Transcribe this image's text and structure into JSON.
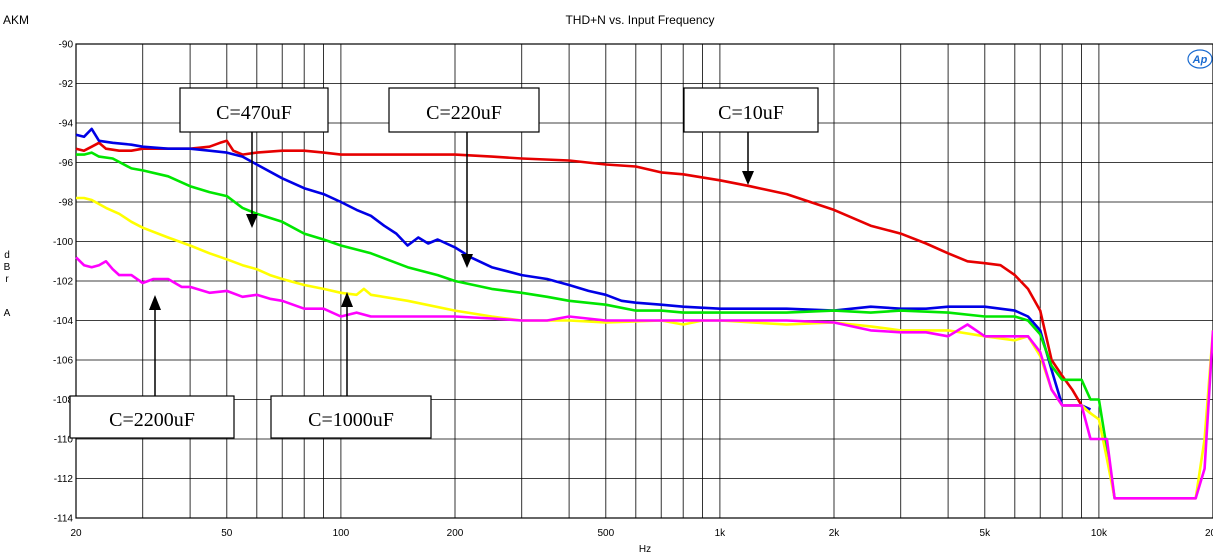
{
  "header": {
    "brand": "AKM",
    "logo_text": "Ap"
  },
  "chart_data": {
    "type": "line",
    "title": "THD+N vs. Input Frequency",
    "xlabel": "Hz",
    "ylabel_lines": [
      "d",
      "B",
      "r",
      "",
      "A"
    ],
    "x_scale": "log",
    "xlim": [
      20,
      20000
    ],
    "ylim": [
      -114,
      -90
    ],
    "grid": true,
    "x_tick_labels": [
      {
        "value": 20,
        "label": "20"
      },
      {
        "value": 50,
        "label": "50"
      },
      {
        "value": 100,
        "label": "100"
      },
      {
        "value": 200,
        "label": "200"
      },
      {
        "value": 500,
        "label": "500"
      },
      {
        "value": 1000,
        "label": "1k"
      },
      {
        "value": 2000,
        "label": "2k"
      },
      {
        "value": 5000,
        "label": "5k"
      },
      {
        "value": 10000,
        "label": "10k"
      },
      {
        "value": 20000,
        "label": "20k"
      }
    ],
    "y_tick_labels": [
      {
        "value": -90,
        "label": "-90"
      },
      {
        "value": -92,
        "label": "-92"
      },
      {
        "value": -94,
        "label": "-94"
      },
      {
        "value": -96,
        "label": "-96"
      },
      {
        "value": -98,
        "label": "-98"
      },
      {
        "value": -100,
        "label": "-100"
      },
      {
        "value": -102,
        "label": "-102"
      },
      {
        "value": -104,
        "label": "-104"
      },
      {
        "value": -106,
        "label": "-106"
      },
      {
        "value": -108,
        "label": "-108"
      },
      {
        "value": -110,
        "label": "-110"
      },
      {
        "value": -112,
        "label": "-112"
      },
      {
        "value": -114,
        "label": "-114"
      }
    ],
    "series": [
      {
        "color": "#e60000",
        "points": [
          [
            20,
            -95.3
          ],
          [
            21,
            -95.4
          ],
          [
            22,
            -95.2
          ],
          [
            23,
            -95.0
          ],
          [
            24,
            -95.3
          ],
          [
            26,
            -95.4
          ],
          [
            28,
            -95.4
          ],
          [
            30,
            -95.3
          ],
          [
            35,
            -95.3
          ],
          [
            40,
            -95.3
          ],
          [
            45,
            -95.2
          ],
          [
            48,
            -95.0
          ],
          [
            50,
            -94.9
          ],
          [
            52,
            -95.4
          ],
          [
            55,
            -95.6
          ],
          [
            60,
            -95.5
          ],
          [
            70,
            -95.4
          ],
          [
            80,
            -95.4
          ],
          [
            90,
            -95.5
          ],
          [
            100,
            -95.6
          ],
          [
            120,
            -95.6
          ],
          [
            150,
            -95.6
          ],
          [
            200,
            -95.6
          ],
          [
            250,
            -95.7
          ],
          [
            300,
            -95.8
          ],
          [
            400,
            -95.9
          ],
          [
            500,
            -96.1
          ],
          [
            600,
            -96.2
          ],
          [
            700,
            -96.5
          ],
          [
            800,
            -96.6
          ],
          [
            1000,
            -96.9
          ],
          [
            1200,
            -97.2
          ],
          [
            1500,
            -97.6
          ],
          [
            2000,
            -98.4
          ],
          [
            2500,
            -99.2
          ],
          [
            3000,
            -99.6
          ],
          [
            3500,
            -100.1
          ],
          [
            4000,
            -100.6
          ],
          [
            4500,
            -101.0
          ],
          [
            5000,
            -101.1
          ],
          [
            5500,
            -101.2
          ],
          [
            6000,
            -101.7
          ],
          [
            6500,
            -102.4
          ],
          [
            7000,
            -103.5
          ],
          [
            7500,
            -106.0
          ],
          [
            8000,
            -106.8
          ],
          [
            8500,
            -107.5
          ],
          [
            9000,
            -108.3
          ],
          [
            9500,
            -108.7
          ]
        ]
      },
      {
        "color": "#0000e6",
        "points": [
          [
            20,
            -94.6
          ],
          [
            21,
            -94.7
          ],
          [
            22,
            -94.3
          ],
          [
            23,
            -94.9
          ],
          [
            25,
            -95.0
          ],
          [
            28,
            -95.1
          ],
          [
            30,
            -95.2
          ],
          [
            35,
            -95.3
          ],
          [
            40,
            -95.3
          ],
          [
            45,
            -95.4
          ],
          [
            50,
            -95.5
          ],
          [
            55,
            -95.7
          ],
          [
            60,
            -96.1
          ],
          [
            70,
            -96.8
          ],
          [
            80,
            -97.3
          ],
          [
            90,
            -97.6
          ],
          [
            100,
            -98.0
          ],
          [
            110,
            -98.4
          ],
          [
            120,
            -98.7
          ],
          [
            130,
            -99.2
          ],
          [
            140,
            -99.6
          ],
          [
            150,
            -100.2
          ],
          [
            160,
            -99.8
          ],
          [
            170,
            -100.1
          ],
          [
            180,
            -99.9
          ],
          [
            200,
            -100.3
          ],
          [
            220,
            -100.8
          ],
          [
            250,
            -101.3
          ],
          [
            300,
            -101.7
          ],
          [
            350,
            -101.9
          ],
          [
            400,
            -102.2
          ],
          [
            450,
            -102.5
          ],
          [
            500,
            -102.7
          ],
          [
            550,
            -103.0
          ],
          [
            600,
            -103.1
          ],
          [
            700,
            -103.2
          ],
          [
            800,
            -103.3
          ],
          [
            1000,
            -103.4
          ],
          [
            1500,
            -103.4
          ],
          [
            2000,
            -103.5
          ],
          [
            2500,
            -103.3
          ],
          [
            3000,
            -103.4
          ],
          [
            3500,
            -103.4
          ],
          [
            4000,
            -103.3
          ],
          [
            5000,
            -103.3
          ],
          [
            6000,
            -103.5
          ],
          [
            6500,
            -103.8
          ],
          [
            7000,
            -104.5
          ],
          [
            7500,
            -106.5
          ],
          [
            8000,
            -108.3
          ],
          [
            9000,
            -108.3
          ],
          [
            9500,
            -108.5
          ]
        ]
      },
      {
        "color": "#00e600",
        "points": [
          [
            20,
            -95.6
          ],
          [
            21,
            -95.6
          ],
          [
            22,
            -95.5
          ],
          [
            23,
            -95.7
          ],
          [
            25,
            -95.8
          ],
          [
            28,
            -96.3
          ],
          [
            30,
            -96.4
          ],
          [
            35,
            -96.7
          ],
          [
            40,
            -97.2
          ],
          [
            45,
            -97.5
          ],
          [
            50,
            -97.7
          ],
          [
            55,
            -98.3
          ],
          [
            60,
            -98.6
          ],
          [
            70,
            -99.0
          ],
          [
            80,
            -99.6
          ],
          [
            90,
            -99.9
          ],
          [
            100,
            -100.2
          ],
          [
            120,
            -100.6
          ],
          [
            150,
            -101.3
          ],
          [
            180,
            -101.7
          ],
          [
            200,
            -102.0
          ],
          [
            250,
            -102.4
          ],
          [
            300,
            -102.6
          ],
          [
            350,
            -102.8
          ],
          [
            400,
            -103.0
          ],
          [
            500,
            -103.2
          ],
          [
            600,
            -103.5
          ],
          [
            700,
            -103.5
          ],
          [
            800,
            -103.6
          ],
          [
            1000,
            -103.6
          ],
          [
            1500,
            -103.6
          ],
          [
            2000,
            -103.5
          ],
          [
            2500,
            -103.6
          ],
          [
            3000,
            -103.5
          ],
          [
            4000,
            -103.6
          ],
          [
            5000,
            -103.8
          ],
          [
            6000,
            -103.8
          ],
          [
            6500,
            -104.0
          ],
          [
            7000,
            -104.7
          ],
          [
            7500,
            -106.3
          ],
          [
            8000,
            -107.0
          ],
          [
            9000,
            -107.0
          ],
          [
            9500,
            -108.0
          ],
          [
            10000,
            -108.0
          ],
          [
            10500,
            -110.5
          ],
          [
            11000,
            -113.0
          ]
        ]
      },
      {
        "color": "#ffff00",
        "points": [
          [
            20,
            -97.8
          ],
          [
            21,
            -97.8
          ],
          [
            22,
            -97.9
          ],
          [
            24,
            -98.3
          ],
          [
            26,
            -98.6
          ],
          [
            28,
            -99.0
          ],
          [
            30,
            -99.3
          ],
          [
            35,
            -99.8
          ],
          [
            40,
            -100.2
          ],
          [
            45,
            -100.6
          ],
          [
            50,
            -100.9
          ],
          [
            55,
            -101.2
          ],
          [
            60,
            -101.4
          ],
          [
            65,
            -101.7
          ],
          [
            70,
            -101.9
          ],
          [
            80,
            -102.2
          ],
          [
            90,
            -102.4
          ],
          [
            100,
            -102.6
          ],
          [
            110,
            -102.7
          ],
          [
            115,
            -102.4
          ],
          [
            120,
            -102.7
          ],
          [
            150,
            -103.0
          ],
          [
            200,
            -103.5
          ],
          [
            250,
            -103.8
          ],
          [
            300,
            -104.0
          ],
          [
            400,
            -104.0
          ],
          [
            500,
            -104.1
          ],
          [
            700,
            -104.0
          ],
          [
            800,
            -104.2
          ],
          [
            900,
            -104.0
          ],
          [
            1000,
            -104.0
          ],
          [
            1500,
            -104.2
          ],
          [
            2000,
            -104.1
          ],
          [
            2500,
            -104.3
          ],
          [
            3000,
            -104.5
          ],
          [
            4000,
            -104.5
          ],
          [
            5000,
            -104.8
          ],
          [
            6000,
            -105.0
          ],
          [
            6500,
            -104.8
          ],
          [
            7000,
            -105.8
          ],
          [
            7500,
            -107.5
          ],
          [
            8000,
            -108.3
          ],
          [
            9000,
            -108.3
          ],
          [
            9500,
            -108.7
          ],
          [
            10000,
            -109.0
          ],
          [
            10500,
            -111.0
          ],
          [
            11000,
            -113.0
          ],
          [
            18000,
            -113.0
          ],
          [
            19000,
            -110.0
          ],
          [
            20000,
            -104.5
          ]
        ]
      },
      {
        "color": "#ff00ff",
        "points": [
          [
            20,
            -100.8
          ],
          [
            21,
            -101.2
          ],
          [
            22,
            -101.3
          ],
          [
            23,
            -101.2
          ],
          [
            24,
            -101.0
          ],
          [
            25,
            -101.4
          ],
          [
            26,
            -101.7
          ],
          [
            28,
            -101.7
          ],
          [
            30,
            -102.1
          ],
          [
            32,
            -101.9
          ],
          [
            35,
            -101.9
          ],
          [
            38,
            -102.3
          ],
          [
            40,
            -102.3
          ],
          [
            45,
            -102.6
          ],
          [
            50,
            -102.5
          ],
          [
            55,
            -102.8
          ],
          [
            60,
            -102.7
          ],
          [
            65,
            -102.9
          ],
          [
            70,
            -103.0
          ],
          [
            80,
            -103.4
          ],
          [
            90,
            -103.4
          ],
          [
            100,
            -103.8
          ],
          [
            110,
            -103.6
          ],
          [
            120,
            -103.8
          ],
          [
            150,
            -103.8
          ],
          [
            200,
            -103.8
          ],
          [
            250,
            -103.9
          ],
          [
            300,
            -104.0
          ],
          [
            350,
            -104.0
          ],
          [
            400,
            -103.8
          ],
          [
            500,
            -104.0
          ],
          [
            600,
            -104.0
          ],
          [
            700,
            -104.0
          ],
          [
            800,
            -104.0
          ],
          [
            1000,
            -104.0
          ],
          [
            1500,
            -104.0
          ],
          [
            2000,
            -104.1
          ],
          [
            2500,
            -104.5
          ],
          [
            3000,
            -104.6
          ],
          [
            3500,
            -104.6
          ],
          [
            4000,
            -104.8
          ],
          [
            4500,
            -104.2
          ],
          [
            5000,
            -104.8
          ],
          [
            6000,
            -104.8
          ],
          [
            6500,
            -104.8
          ],
          [
            7000,
            -105.6
          ],
          [
            7500,
            -107.5
          ],
          [
            8000,
            -108.3
          ],
          [
            9000,
            -108.3
          ],
          [
            9500,
            -110.0
          ],
          [
            10500,
            -110.0
          ],
          [
            11000,
            -113.0
          ],
          [
            18000,
            -113.0
          ],
          [
            19000,
            -111.5
          ],
          [
            20000,
            -104.5
          ]
        ]
      }
    ],
    "annotations": [
      {
        "text": "C=470uF"
      },
      {
        "text": "C=220uF"
      },
      {
        "text": "C=10uF"
      },
      {
        "text": "C=2200uF"
      },
      {
        "text": "C=1000uF"
      }
    ]
  }
}
